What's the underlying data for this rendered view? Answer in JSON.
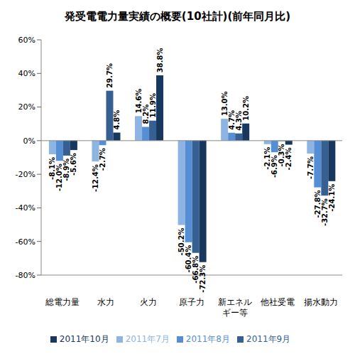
{
  "chart_data": {
    "type": "bar",
    "title": "発受電電力量実績の概要(10社計)(前年同月比)",
    "categories": [
      "総電力量",
      "水力",
      "火力",
      "原子力",
      "新エネルギー等",
      "他社受電",
      "揚水動力"
    ],
    "series": [
      {
        "name": "2011年7月",
        "color": "#8EB4E3",
        "values": [
          -8.1,
          -12.4,
          14.6,
          -50.2,
          13.0,
          -2.1,
          -7.7
        ],
        "value_labels": [
          "-8.1%",
          "-12.4%",
          "14.6%",
          "-50.2%",
          "13.0%",
          "-2.1%",
          "-7.7%"
        ]
      },
      {
        "name": "2011年8月",
        "color": "#558ED5",
        "values": [
          -12.0,
          -2.7,
          8.2,
          -60.4,
          4.7,
          -6.9,
          -27.8
        ],
        "value_labels": [
          "-12.0%",
          "-2.7%",
          "8.2%",
          "-60.4%",
          "4.7%",
          "-6.9%",
          "-27.8%"
        ]
      },
      {
        "name": "2011年9月",
        "color": "#366092",
        "values": [
          -8.9,
          29.7,
          11.9,
          -66.8,
          4.3,
          -0.3,
          -32.7
        ],
        "value_labels": [
          "-8.9%",
          "29.7%",
          "11.9%",
          "-66.8%",
          "4.3%",
          "-0.3%",
          "-32.7%"
        ]
      },
      {
        "name": "2011年10月",
        "color": "#17375E",
        "values": [
          -5.6,
          4.8,
          38.8,
          -72.3,
          10.2,
          -2.4,
          -24.1
        ],
        "value_labels": [
          "-5.6%",
          "4.8%",
          "38.8%",
          "-72.3%",
          "10.2%",
          "-2.4%",
          "-24.1%"
        ]
      }
    ],
    "ylim": [
      -80,
      60
    ],
    "yticks": [
      {
        "value": -80,
        "label": "-80%"
      },
      {
        "value": -60,
        "label": "-60%"
      },
      {
        "value": -40,
        "label": "-40%"
      },
      {
        "value": -20,
        "label": "-20%"
      },
      {
        "value": 0,
        "label": "0%"
      },
      {
        "value": 20,
        "label": "20%"
      },
      {
        "value": 40,
        "label": "40%"
      },
      {
        "value": 60,
        "label": "60%"
      }
    ],
    "grid": false,
    "legend": "bottom",
    "data_labels": true
  }
}
